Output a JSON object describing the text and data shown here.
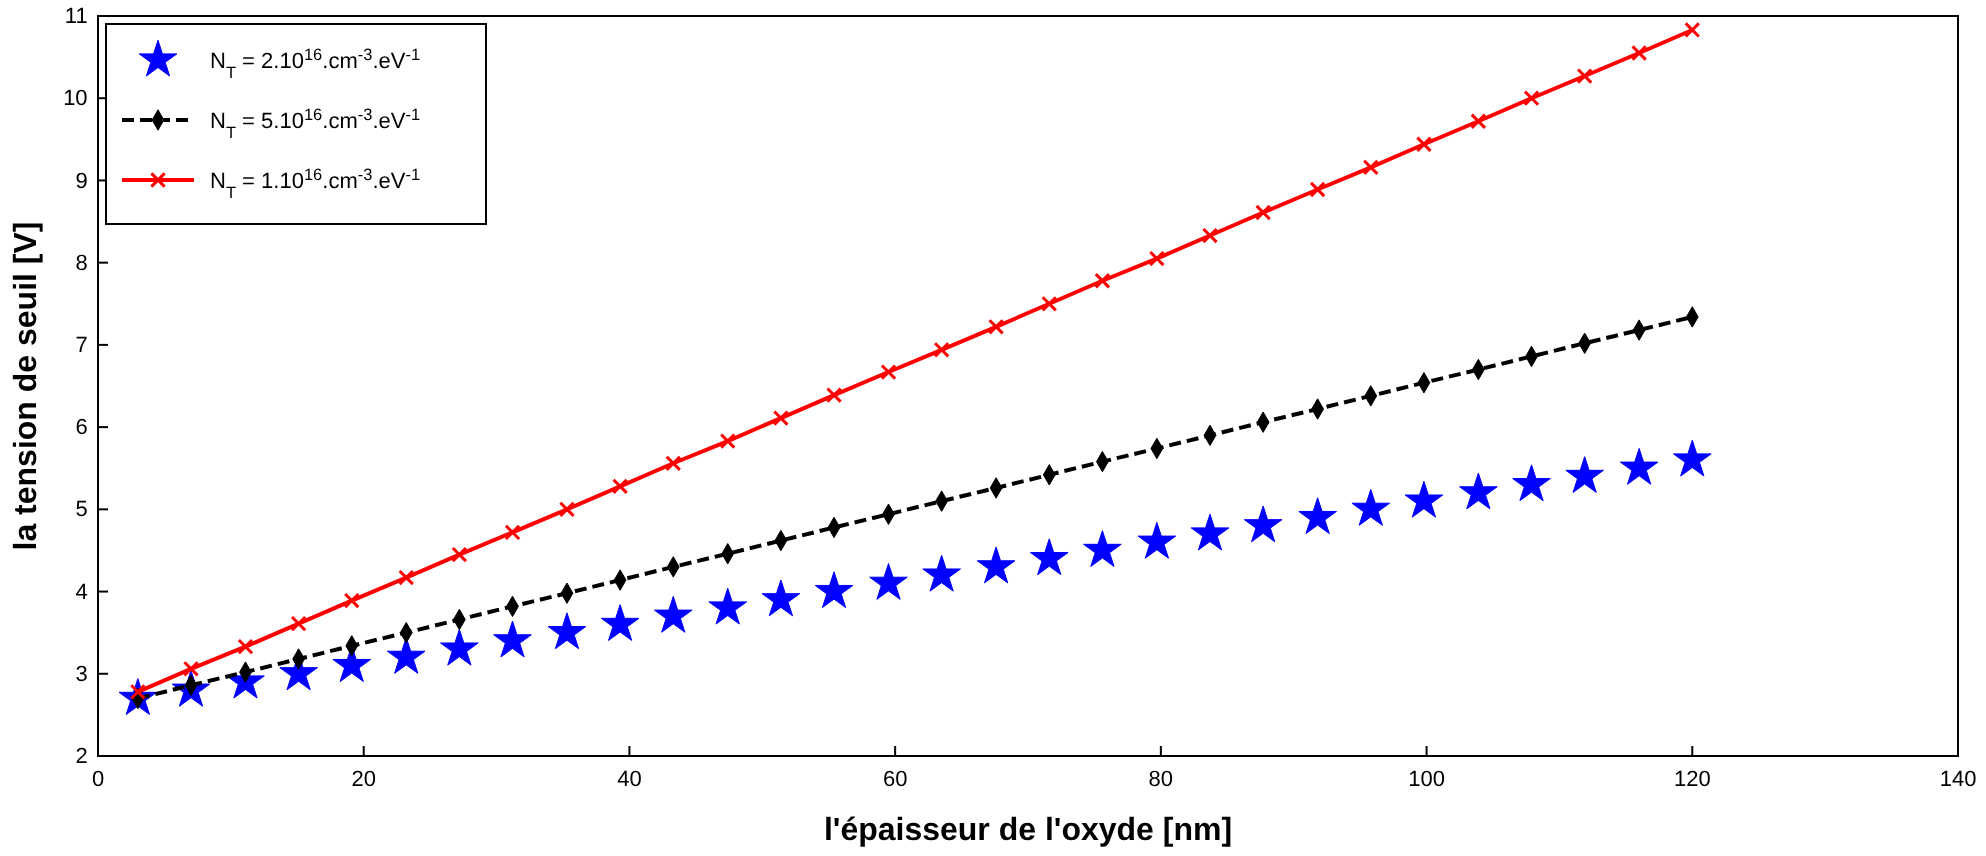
{
  "chart_data": {
    "type": "line",
    "xlabel": "l'épaisseur de l'oxyde  [nm]",
    "ylabel": "la tension de seuil [V]",
    "x": [
      3,
      7,
      11.1,
      15.1,
      19.1,
      23.2,
      27.2,
      31.2,
      35.3,
      39.3,
      43.3,
      47.4,
      51.4,
      55.4,
      59.5,
      63.5,
      67.6,
      71.6,
      75.6,
      79.7,
      83.7,
      87.7,
      91.8,
      95.8,
      99.8,
      103.9,
      107.9,
      111.9,
      116,
      120
    ],
    "series": [
      {
        "name": "N$_{T}$ = 2.10$^{16}$.cm$^{-3}$.eV$^{-1}$",
        "type": "scatter",
        "marker": "star",
        "color": "#0000ff",
        "values": [
          2.7,
          2.8,
          2.9,
          3.0,
          3.1,
          3.2,
          3.3,
          3.4,
          3.5,
          3.6,
          3.7,
          3.8,
          3.9,
          4.0,
          4.1,
          4.2,
          4.3,
          4.4,
          4.5,
          4.6,
          4.7,
          4.8,
          4.9,
          5.0,
          5.1,
          5.2,
          5.3,
          5.4,
          5.5,
          5.6
        ]
      },
      {
        "name": "N$_{T}$ = 5.10$^{16}$.cm$^{-3}$.eV$^{-1}$",
        "marker": "diamond",
        "line_style": "dashed",
        "color": "#000000",
        "values": [
          2.7,
          2.86,
          3.02,
          3.18,
          3.34,
          3.5,
          3.66,
          3.82,
          3.98,
          4.14,
          4.3,
          4.46,
          4.62,
          4.78,
          4.94,
          5.1,
          5.26,
          5.42,
          5.58,
          5.74,
          5.9,
          6.06,
          6.22,
          6.38,
          6.54,
          6.7,
          6.86,
          7.02,
          7.18,
          7.34
        ]
      },
      {
        "name": "N$_{T}$ = 1.10$^{16}$.cm$^{-3}$.eV$^{-1}$",
        "marker": "cross",
        "line_style": "solid",
        "color": "#ff0000",
        "values": [
          2.78,
          3.06,
          3.33,
          3.61,
          3.89,
          4.17,
          4.45,
          4.72,
          5.0,
          5.28,
          5.56,
          5.83,
          6.11,
          6.39,
          6.67,
          6.94,
          7.22,
          7.5,
          7.78,
          8.05,
          8.33,
          8.61,
          8.89,
          9.16,
          9.44,
          9.72,
          10.0,
          10.27,
          10.55,
          10.83
        ]
      }
    ],
    "xlim": [
      0,
      140
    ],
    "xticks": [
      0,
      20,
      40,
      60,
      80,
      100,
      120,
      140
    ],
    "ylim": [
      2,
      11
    ],
    "yticks": [
      2,
      3,
      4,
      5,
      6,
      7,
      8,
      9,
      10,
      11
    ],
    "grid": false,
    "legend": "top left"
  }
}
